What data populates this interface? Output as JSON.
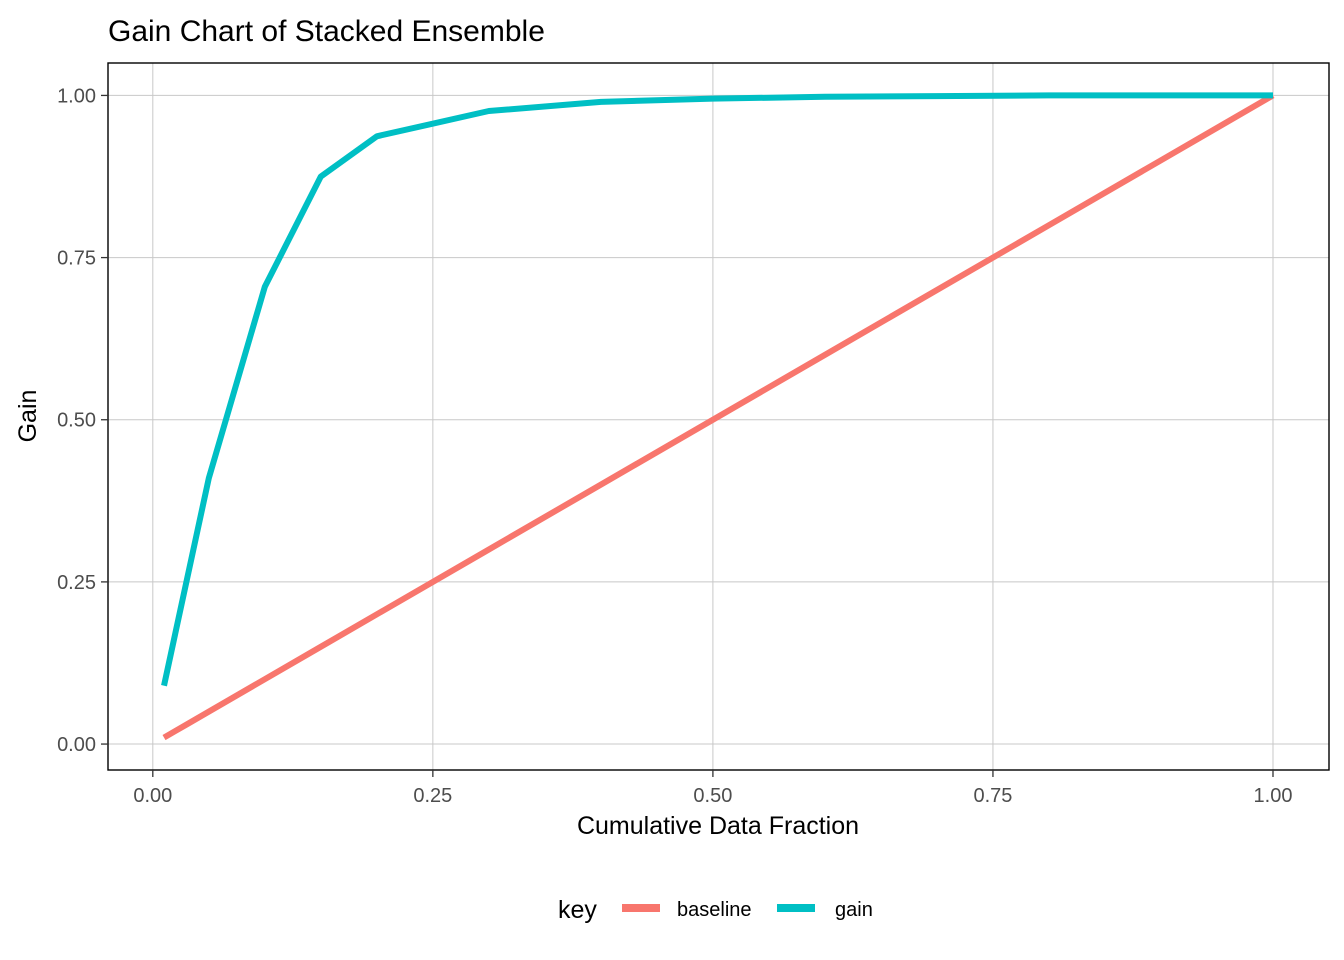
{
  "chart_data": {
    "type": "line",
    "title": "Gain Chart of Stacked Ensemble",
    "xlabel": "Cumulative Data Fraction",
    "ylabel": "Gain",
    "xlim": [
      -0.04,
      1.05
    ],
    "ylim": [
      -0.04,
      1.05
    ],
    "xticks": [
      0,
      0.25,
      0.5,
      0.75,
      1
    ],
    "xtick_labels": [
      "0.00",
      "0.25",
      "0.50",
      "0.75",
      "1.00"
    ],
    "yticks": [
      0,
      0.25,
      0.5,
      0.75,
      1
    ],
    "ytick_labels": [
      "0.00",
      "0.25",
      "0.50",
      "0.75",
      "1.00"
    ],
    "grid": true,
    "legend": {
      "title": "key",
      "position": "bottom",
      "entries": [
        "baseline",
        "gain"
      ]
    },
    "series": [
      {
        "name": "baseline",
        "color": "#F8766D",
        "x": [
          0.01,
          0.02,
          0.03,
          0.04,
          0.05,
          0.1,
          0.15,
          0.2,
          0.3,
          0.4,
          0.5,
          0.6,
          0.7,
          0.8,
          0.9,
          1.0
        ],
        "y": [
          0.01,
          0.02,
          0.03,
          0.04,
          0.05,
          0.1,
          0.15,
          0.2,
          0.3,
          0.4,
          0.5,
          0.6,
          0.7,
          0.8,
          0.9,
          1.0
        ]
      },
      {
        "name": "gain",
        "color": "#00BFC4",
        "x": [
          0.01,
          0.02,
          0.03,
          0.04,
          0.05,
          0.1,
          0.15,
          0.2,
          0.3,
          0.4,
          0.5,
          0.6,
          0.7,
          0.8,
          0.9,
          1.0
        ],
        "y": [
          0.09,
          0.17,
          0.25,
          0.33,
          0.41,
          0.705,
          0.875,
          0.937,
          0.976,
          0.99,
          0.995,
          0.998,
          0.999,
          1.0,
          1.0,
          1.0
        ]
      }
    ]
  }
}
